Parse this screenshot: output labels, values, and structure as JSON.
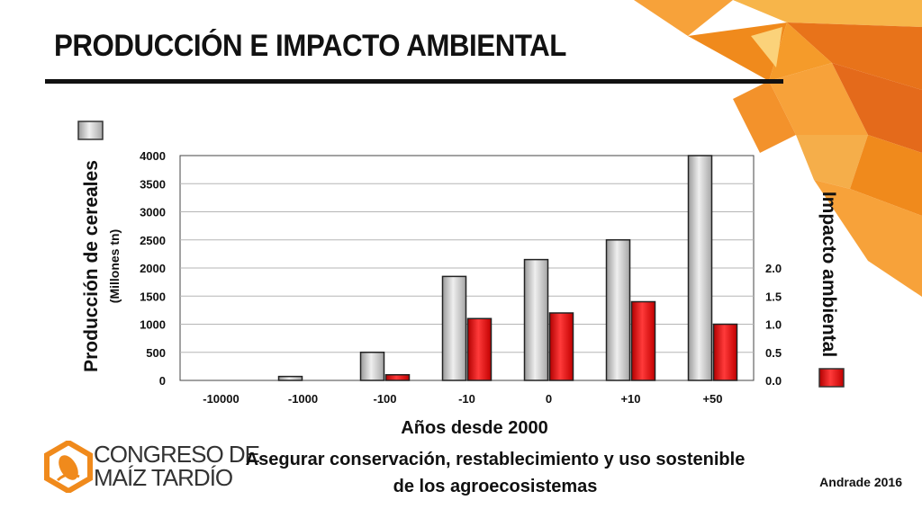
{
  "slide": {
    "title": "PRODUCCIÓN E IMPACTO AMBIENTAL",
    "footer_line1": "Asegurar conservación, restablecimiento y uso sostenible",
    "footer_line2": "de los agroecosistemas",
    "author": "Andrade 2016",
    "logo_line1": "CONGRESO DE",
    "logo_line2": "MAÍZ TARDÍO",
    "accent_color": "#f08a1c"
  },
  "chart_data": {
    "type": "bar",
    "categories": [
      "-10000",
      "-1000",
      "-100",
      "-10",
      "0",
      "+10",
      "+50"
    ],
    "xlabel": "Años desde 2000",
    "ylabel": "Producción de cereales",
    "ylabel_sub": "(Millones tn)",
    "y2label": "Impacto ambiental",
    "ylim": [
      0,
      4000
    ],
    "yticks": [
      "0",
      "500",
      "1000",
      "1500",
      "2000",
      "2500",
      "3000",
      "3500",
      "4000"
    ],
    "y2lim": [
      0,
      4.0
    ],
    "y2ticks": [
      "0.0",
      "0.5",
      "1.0",
      "1.5",
      "2.0"
    ],
    "grid": true,
    "series": [
      {
        "axis": "left",
        "color": "#c8c8c8",
        "values": [
          0,
          70,
          500,
          1850,
          2150,
          2500,
          4000
        ]
      },
      {
        "axis": "right",
        "color": "#ee1111",
        "values": [
          0,
          0,
          0.1,
          1.1,
          1.2,
          1.4,
          1.0
        ]
      }
    ]
  }
}
